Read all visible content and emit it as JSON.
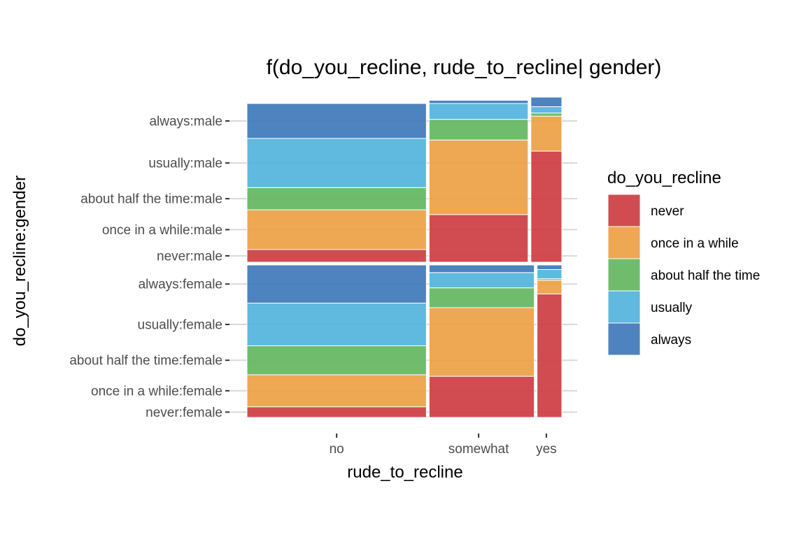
{
  "chart_data": {
    "type": "mosaic",
    "title": "f(do_you_recline, rude_to_recline| gender)",
    "xlabel": "rude_to_recline",
    "ylabel": "do_you_recline:gender",
    "x_categories": [
      "no",
      "somewhat",
      "yes"
    ],
    "y_tick_labels": [
      "always:male",
      "usually:male",
      "about half the time:male",
      "once in a while:male",
      "never:male",
      "always:female",
      "usually:female",
      "about half the time:female",
      "once in a while:female",
      "never:female"
    ],
    "legend": {
      "title": "do_you_recline",
      "entries": [
        "never",
        "once in a while",
        "about half the time",
        "usually",
        "always"
      ],
      "placement": "right"
    },
    "colors": {
      "never": "#CC3D42",
      "once in a while": "#EDA043",
      "about half the time": "#63B760",
      "usually": "#53B3DB",
      "always": "#3E78B9"
    },
    "groups": [
      {
        "gender": "male",
        "share": 0.51,
        "columns": [
          {
            "rude_to_recline": "no",
            "share": 0.58,
            "proportions": {
              "never": 0.08,
              "once in a while": 0.25,
              "about half the time": 0.14,
              "usually": 0.31,
              "always": 0.22
            }
          },
          {
            "rude_to_recline": "somewhat",
            "share": 0.32,
            "proportions": {
              "never": 0.3,
              "once in a while": 0.47,
              "about half the time": 0.13,
              "usually": 0.1,
              "always": 0.02
            }
          },
          {
            "rude_to_recline": "yes",
            "share": 0.1,
            "proportions": {
              "never": 0.7,
              "once in a while": 0.22,
              "about half the time": 0.02,
              "usually": 0.04,
              "always": 0.06
            }
          }
        ]
      },
      {
        "gender": "female",
        "share": 0.49,
        "columns": [
          {
            "rude_to_recline": "no",
            "share": 0.58,
            "proportions": {
              "never": 0.07,
              "once in a while": 0.21,
              "about half the time": 0.19,
              "usually": 0.28,
              "always": 0.25
            }
          },
          {
            "rude_to_recline": "somewhat",
            "share": 0.34,
            "proportions": {
              "never": 0.27,
              "once in a while": 0.45,
              "about half the time": 0.13,
              "usually": 0.1,
              "always": 0.05
            }
          },
          {
            "rude_to_recline": "yes",
            "share": 0.08,
            "proportions": {
              "never": 0.81,
              "once in a while": 0.09,
              "about half the time": 0.01,
              "usually": 0.06,
              "always": 0.03
            }
          }
        ]
      }
    ],
    "grid": true
  }
}
